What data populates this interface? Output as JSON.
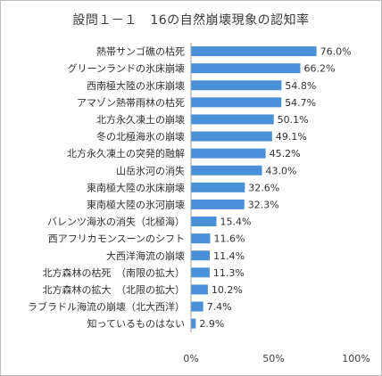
{
  "chart_data": {
    "type": "bar",
    "orientation": "horizontal",
    "title": "設問１－１　16の自然崩壊現象の認知率",
    "categories": [
      "熱帯サンゴ礁の枯死",
      "グリーンランドの氷床崩壊",
      "西南極大陸の氷床崩壊",
      "アマゾン熱帯雨林の枯死",
      "北方永久凍土の崩壊",
      "冬の北極海氷の崩壊",
      "北方永久凍土の突発的融解",
      "山岳氷河の消失",
      "東南極大陸の氷床崩壊",
      "東南極大陸の氷河崩壊",
      "バレンツ海氷の消失（北極海）",
      "西アフリカモンスーンのシフト",
      "大西洋海流の崩壊",
      "北方森林の枯死　（南限の拡大）",
      "北方森林の拡大　（北限の拡大）",
      "ラブラドル海流の崩壊（北大西洋）",
      "知っているものはない"
    ],
    "values": [
      76.0,
      66.2,
      54.8,
      54.7,
      50.1,
      49.1,
      45.2,
      43.0,
      32.6,
      32.3,
      15.4,
      11.6,
      11.4,
      11.3,
      10.2,
      7.4,
      2.9
    ],
    "value_labels": [
      "76.0%",
      "66.2%",
      "54.8%",
      "54.7%",
      "50.1%",
      "49.1%",
      "45.2%",
      "43.0%",
      "32.6%",
      "32.3%",
      "15.4%",
      "11.6%",
      "11.4%",
      "11.3%",
      "10.2%",
      "7.4%",
      "2.9%"
    ],
    "xlim": [
      0,
      100
    ],
    "xticks": [
      "0%",
      "50%",
      "100%"
    ],
    "grid": false,
    "bar_color": "#4a90d9"
  }
}
